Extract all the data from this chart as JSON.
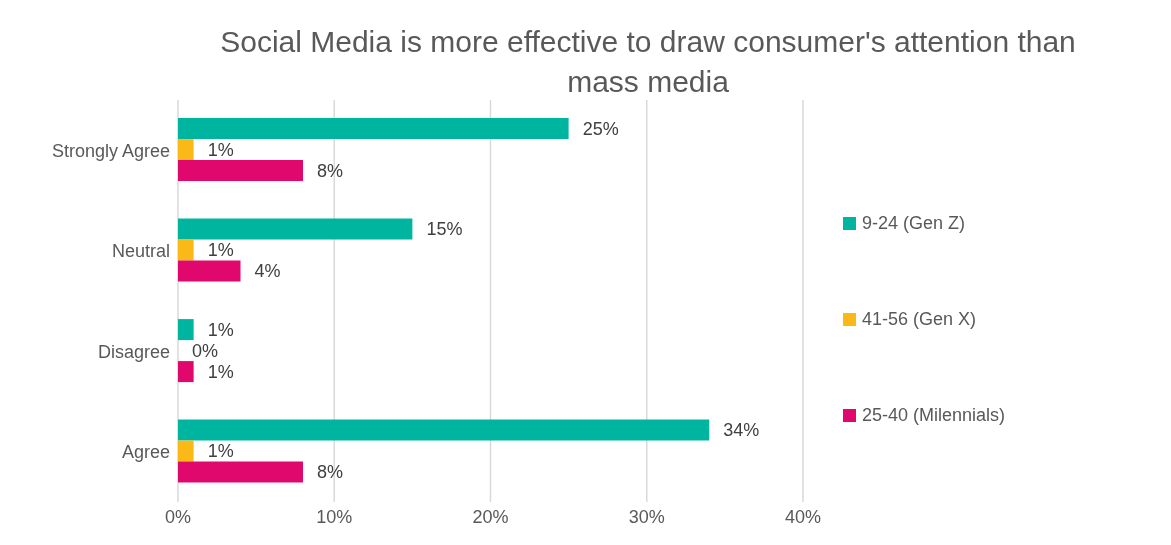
{
  "chart_data": {
    "type": "bar",
    "orientation": "horizontal",
    "title": "Social Media is more effective to draw consumer's attention than mass media",
    "categories": [
      "Strongly Agree",
      "Neutral",
      "Disagree",
      "Agree"
    ],
    "series": [
      {
        "name": "9-24 (Gen Z)",
        "color": "#00b5a0",
        "values": [
          25,
          15,
          1,
          34
        ],
        "value_labels": [
          "25%",
          "15%",
          "1%",
          "34%"
        ]
      },
      {
        "name": "41-56 (Gen X)",
        "color": "#fbb917",
        "values": [
          1,
          1,
          0,
          1
        ],
        "value_labels": [
          "1%",
          "1%",
          "0%",
          "1%"
        ]
      },
      {
        "name": "25-40 (Milennials)",
        "color": "#e0086c",
        "values": [
          8,
          4,
          1,
          8
        ],
        "value_labels": [
          "8%",
          "4%",
          "1%",
          "8%"
        ]
      }
    ],
    "xlim": [
      0,
      40
    ],
    "xticks": [
      {
        "value": 0,
        "label": "0%"
      },
      {
        "value": 10,
        "label": "10%"
      },
      {
        "value": 20,
        "label": "20%"
      },
      {
        "value": 30,
        "label": "30%"
      },
      {
        "value": 40,
        "label": "40%"
      }
    ],
    "grid": "x",
    "legend": "right"
  }
}
